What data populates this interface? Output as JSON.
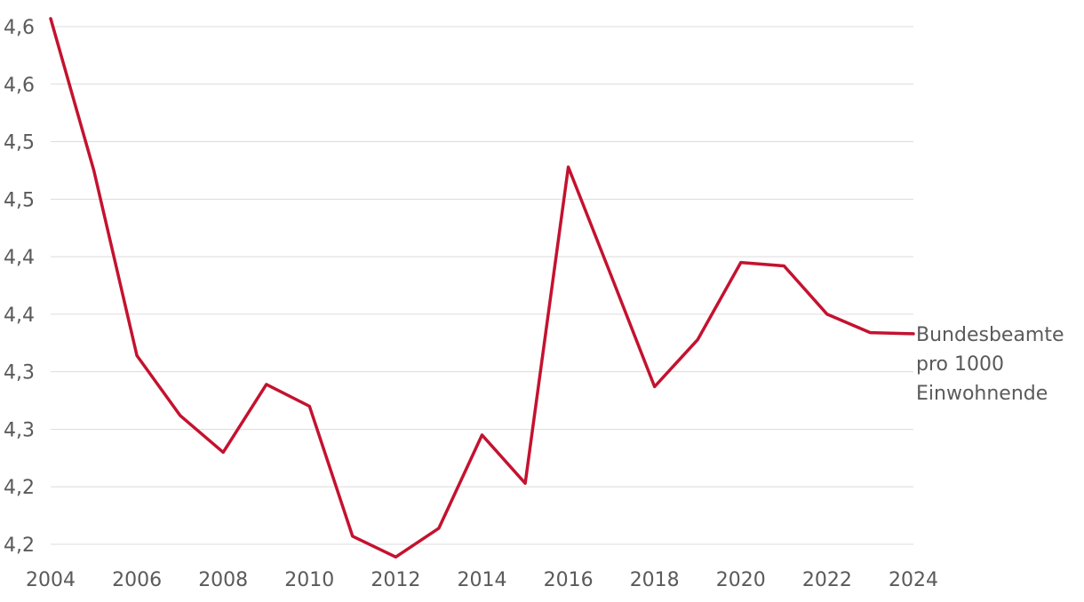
{
  "chart_data": {
    "type": "line",
    "title": "",
    "xlabel": "",
    "ylabel": "",
    "x": [
      2004,
      2005,
      2006,
      2007,
      2008,
      2009,
      2010,
      2011,
      2012,
      2013,
      2014,
      2015,
      2016,
      2017,
      2018,
      2019,
      2020,
      2021,
      2022,
      2023,
      2024
    ],
    "xticks": [
      2004,
      2006,
      2008,
      2010,
      2012,
      2014,
      2016,
      2018,
      2020,
      2022,
      2024
    ],
    "xlim": [
      2004,
      2024
    ],
    "yticks": [
      4.2,
      4.25,
      4.3,
      4.35,
      4.4,
      4.45,
      4.5,
      4.55,
      4.6,
      4.65
    ],
    "ytick_labels": [
      "4,2",
      "4,2",
      "4,3",
      "4,3",
      "4,4",
      "4,4",
      "4,5",
      "4,5",
      "4,6",
      "4,6"
    ],
    "ylim": [
      4.2,
      4.65
    ],
    "grid": true,
    "colors": {
      "series": "#c4122f",
      "grid": "#dcdcdc",
      "text": "#5a5a5a"
    },
    "series": [
      {
        "name": "Bundesbeamte pro 1000 Einwohnende",
        "label_lines": [
          "Bundesbeamte",
          "pro 1000",
          "Einwohnende"
        ],
        "values": [
          4.657,
          4.525,
          4.364,
          4.312,
          4.28,
          4.339,
          4.32,
          4.207,
          4.189,
          4.214,
          4.295,
          4.253,
          4.528,
          4.433,
          4.337,
          4.378,
          4.445,
          4.442,
          4.4,
          4.384,
          4.383
        ]
      }
    ]
  }
}
